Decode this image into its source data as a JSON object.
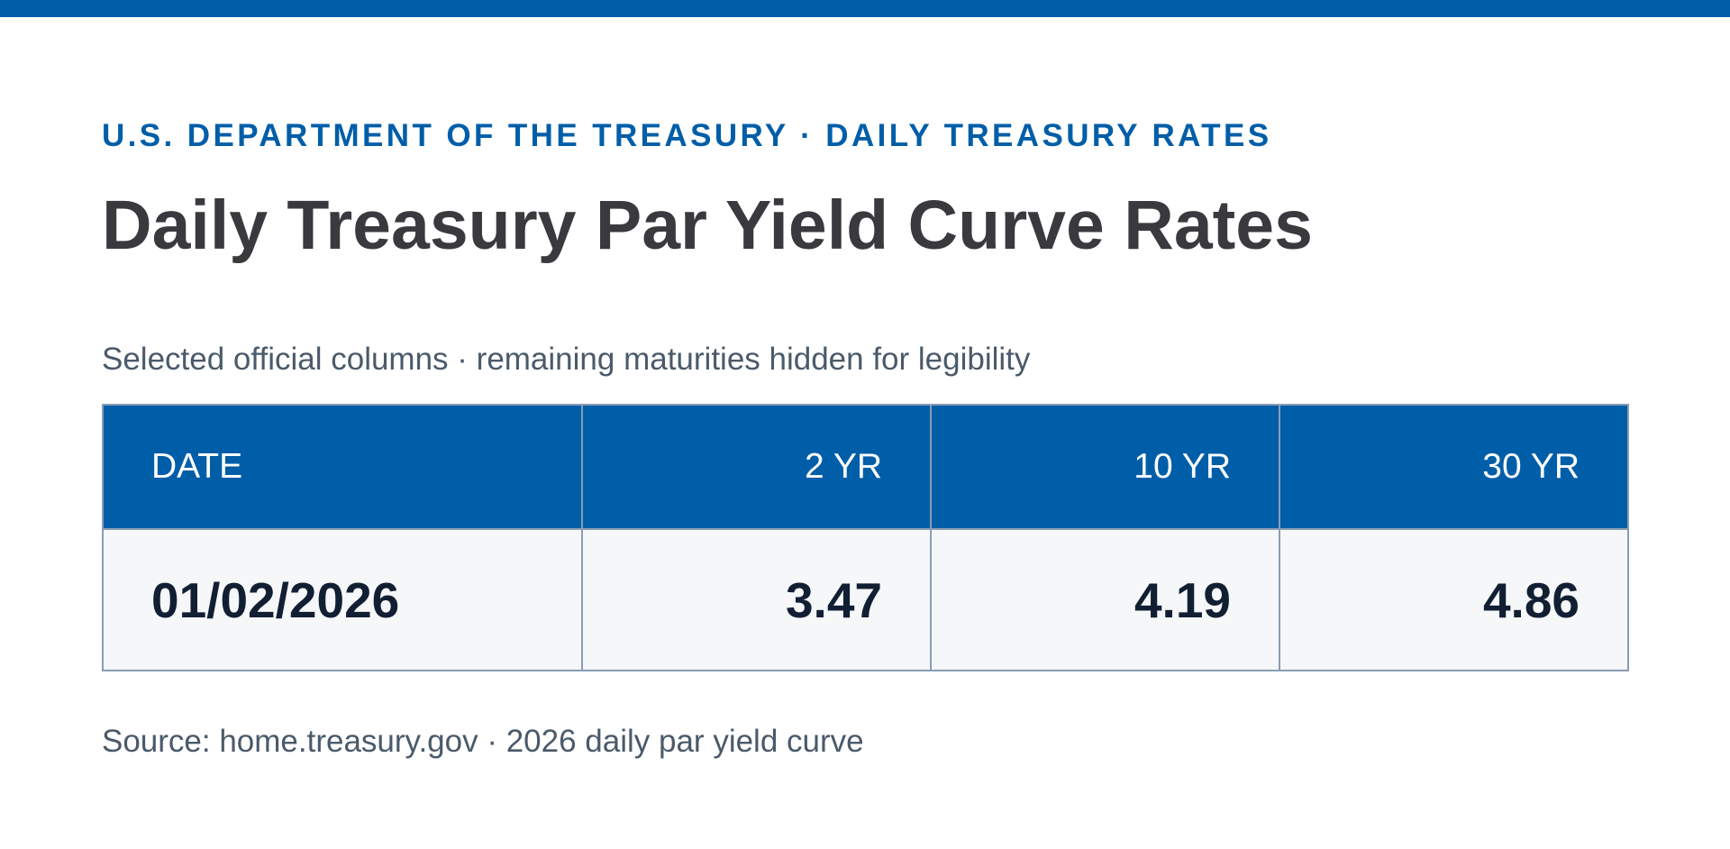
{
  "header": {
    "eyebrow": "U.S. DEPARTMENT OF THE TREASURY · DAILY TREASURY RATES",
    "title": "Daily Treasury Par Yield Curve Rates",
    "subtitle": "Selected official columns · remaining maturities hidden for legibility"
  },
  "table": {
    "columns": [
      "DATE",
      "2 YR",
      "10 YR",
      "30 YR"
    ],
    "rows": [
      [
        "01/02/2026",
        "3.47",
        "4.19",
        "4.86"
      ]
    ]
  },
  "footer": {
    "source": "Source: home.treasury.gov · 2026 daily par yield curve"
  },
  "colors": {
    "brand_blue": "#005ea8",
    "title_text": "#3a3a3e",
    "muted_text": "#4a5a6a",
    "row_background": "#f5f7f9",
    "value_text": "#121f33",
    "border": "#8a9db4"
  }
}
